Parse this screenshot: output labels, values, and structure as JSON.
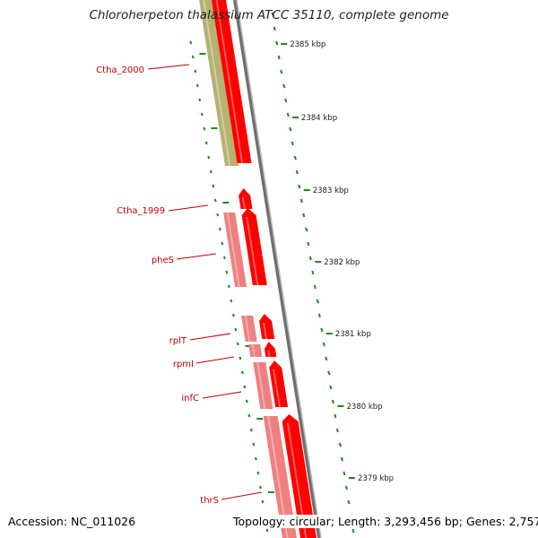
{
  "title": "Chloroherpeton thalassium ATCC 35110, complete genome",
  "colors": {
    "forward_gene": "#ff0000",
    "forward_gene_dark": "#c00000",
    "reverse_gene": "#f08080",
    "other_gene": "#b5b272",
    "backbone": "#808080",
    "tick": "#1a8a1a",
    "label": "#c00000"
  },
  "ruler": {
    "labels": [
      "2385 kbp",
      "2384 kbp",
      "2383 kbp",
      "2382 kbp",
      "2381 kbp",
      "2380 kbp",
      "2379 kbp"
    ]
  },
  "genes": [
    {
      "label": "Ctha_2000"
    },
    {
      "label": "Ctha_1999"
    },
    {
      "label": "pheS"
    },
    {
      "label": "rplT"
    },
    {
      "label": "rpmI"
    },
    {
      "label": "infC"
    },
    {
      "label": "thrS"
    }
  ],
  "footer": {
    "accession_label": "Accession:",
    "accession": "NC_011026",
    "topology_label": "Topology:",
    "topology": "circular",
    "length_label": "Length:",
    "length": "3,293,456 bp",
    "genes_label": "Genes:",
    "genes": "2,757"
  }
}
